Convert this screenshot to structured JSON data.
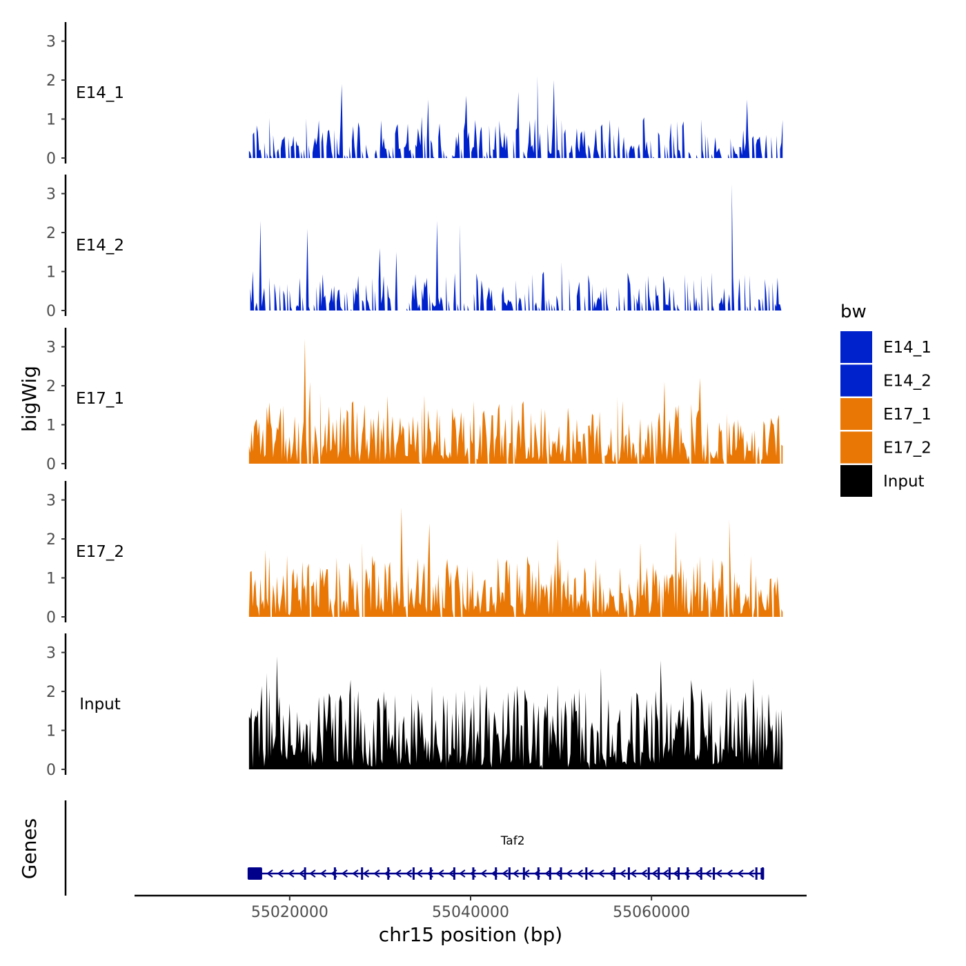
{
  "chart_data": {
    "type": "area",
    "y_axis_title": "bigWig",
    "genes_axis_title": "Genes",
    "x_axis_title": "chr15 position (bp)",
    "x_range": [
      55003000,
      55077000
    ],
    "x_data_extent": [
      55015500,
      55074500
    ],
    "x_ticks": [
      55020000,
      55040000,
      55060000
    ],
    "x_tick_labels": [
      "55020000",
      "55040000",
      "55060000"
    ],
    "y_range": [
      0,
      3.4
    ],
    "y_ticks": [
      0,
      1,
      2,
      3
    ],
    "y_tick_labels": [
      "0",
      "1",
      "2",
      "3"
    ],
    "legend": {
      "title": "bw",
      "position": "right",
      "items": [
        {
          "label": "E14_1",
          "color": "#0022cc"
        },
        {
          "label": "E14_2",
          "color": "#0022cc"
        },
        {
          "label": "E17_1",
          "color": "#e87705"
        },
        {
          "label": "E17_2",
          "color": "#e87705"
        },
        {
          "label": "Input",
          "color": "#000000"
        }
      ]
    },
    "series": [
      {
        "name": "E14_1",
        "label": "E14_1",
        "color": "#0022cc",
        "sparsity": 0.42,
        "peak_cap": 0.8,
        "peaks": [
          [
            55025700,
            1.9
          ],
          [
            55047400,
            2.1
          ],
          [
            55049200,
            2.0
          ],
          [
            55045300,
            1.7
          ],
          [
            55070500,
            1.5
          ],
          [
            55035300,
            1.5
          ],
          [
            55039500,
            1.6
          ]
        ]
      },
      {
        "name": "E14_2",
        "label": "E14_2",
        "color": "#0022cc",
        "sparsity": 0.44,
        "peak_cap": 0.8,
        "peaks": [
          [
            55016800,
            2.3
          ],
          [
            55036300,
            2.3
          ],
          [
            55068900,
            3.25
          ],
          [
            55022000,
            2.1
          ],
          [
            55038800,
            2.2
          ],
          [
            55029900,
            1.6
          ],
          [
            55031800,
            1.5
          ]
        ]
      },
      {
        "name": "E17_1",
        "label": "E17_1",
        "color": "#e87705",
        "sparsity": 0.05,
        "peak_cap": 1.3,
        "peaks": [
          [
            55021700,
            3.2
          ],
          [
            55022200,
            2.1
          ],
          [
            55065400,
            2.2
          ],
          [
            55061500,
            2.1
          ],
          [
            55023300,
            1.8
          ],
          [
            55040300,
            1.6
          ],
          [
            55056300,
            1.7
          ]
        ]
      },
      {
        "name": "E17_2",
        "label": "E17_2",
        "color": "#e87705",
        "sparsity": 0.05,
        "peak_cap": 1.3,
        "peaks": [
          [
            55032300,
            2.8
          ],
          [
            55035500,
            2.4
          ],
          [
            55068600,
            2.5
          ],
          [
            55062700,
            2.2
          ],
          [
            55028000,
            1.9
          ],
          [
            55049600,
            2.0
          ],
          [
            55058700,
            1.9
          ]
        ]
      },
      {
        "name": "Input",
        "label": "Input",
        "color": "#000000",
        "sparsity": 0.0,
        "peak_cap": 1.9,
        "peaks": [
          [
            55018600,
            2.9
          ],
          [
            55061000,
            2.8
          ],
          [
            55054400,
            2.6
          ],
          [
            55026700,
            2.3
          ],
          [
            55064400,
            2.3
          ],
          [
            55041000,
            2.2
          ],
          [
            55037000,
            1.9
          ],
          [
            55030700,
            1.8
          ]
        ]
      }
    ],
    "gene": {
      "name": "Taf2",
      "start": 55015500,
      "end": 55072300,
      "strand": "-",
      "color": "#00008b",
      "utr_end": 55016800,
      "exons": [
        55021700,
        55025000,
        55028000,
        55030900,
        55033700,
        55035600,
        55038200,
        55040300,
        55042800,
        55044300,
        55045900,
        55047500,
        55048800,
        55050000,
        55052800,
        55055900,
        55057500,
        55059700,
        55060800,
        55062000,
        55063000,
        55064000,
        55065500,
        55066900,
        55071600,
        55072300
      ]
    }
  }
}
